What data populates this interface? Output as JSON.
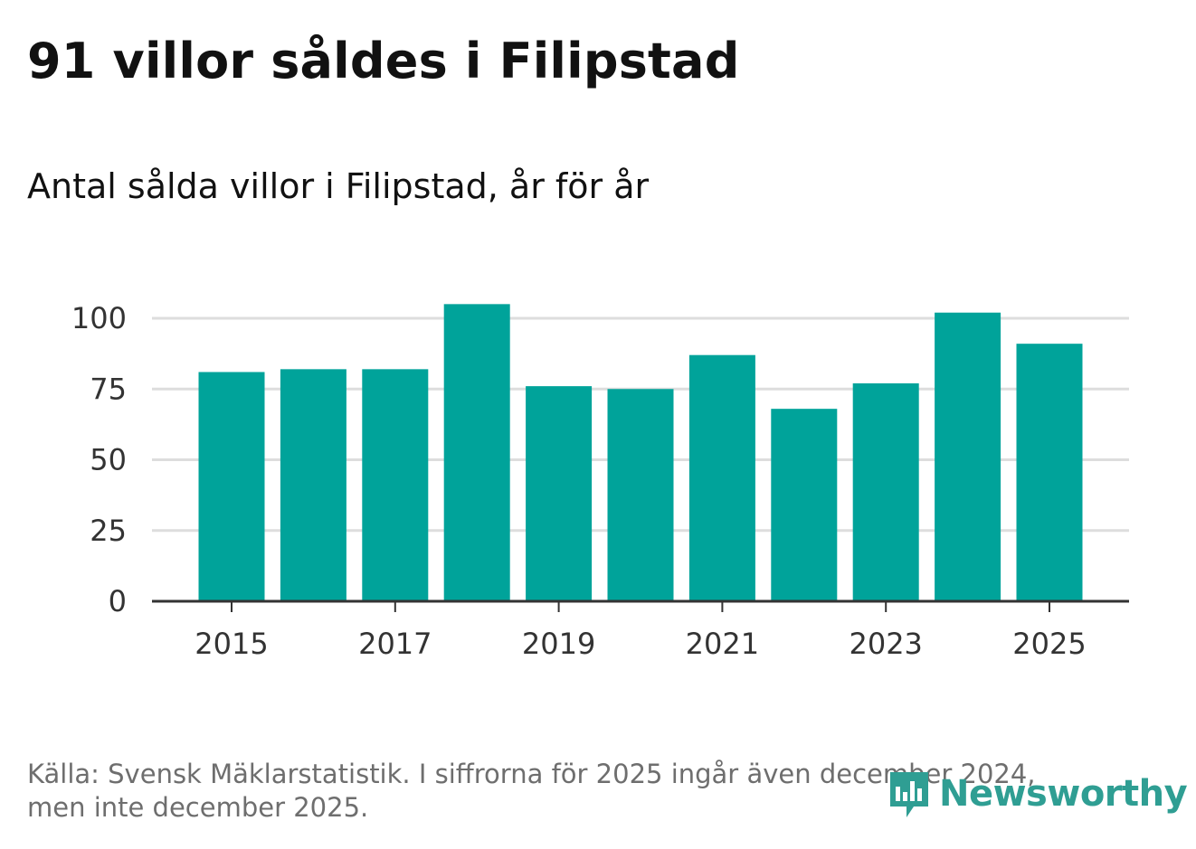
{
  "title": "91 villor såldes i Filipstad",
  "subtitle": "Antal sålda villor i Filipstad, år för år",
  "footer": {
    "line1": "Källa: Svensk Mäklarstatistik. I siffrorna för 2025 ingår även december 2024,",
    "line2": "men inte december 2025."
  },
  "brand": {
    "name": "Newsworthy",
    "icon": "bar-chart-speech-bubble-icon",
    "color": "#2f9e93"
  },
  "colors": {
    "bar": "#00a39a",
    "grid": "#dddddd",
    "axis": "#333333",
    "text": "#333333"
  },
  "chart_data": {
    "type": "bar",
    "title": "Antal sålda villor i Filipstad, år för år",
    "xlabel": "",
    "ylabel": "",
    "categories": [
      "2015",
      "2016",
      "2017",
      "2018",
      "2019",
      "2020",
      "2021",
      "2022",
      "2023",
      "2024",
      "2025"
    ],
    "values": [
      81,
      82,
      82,
      105,
      76,
      75,
      87,
      68,
      77,
      102,
      91
    ],
    "x_tick_labels": [
      "2015",
      "2017",
      "2019",
      "2021",
      "2023",
      "2025"
    ],
    "y_ticks": [
      0,
      25,
      50,
      75,
      100
    ],
    "ylim": [
      0,
      110
    ],
    "grid": true
  }
}
